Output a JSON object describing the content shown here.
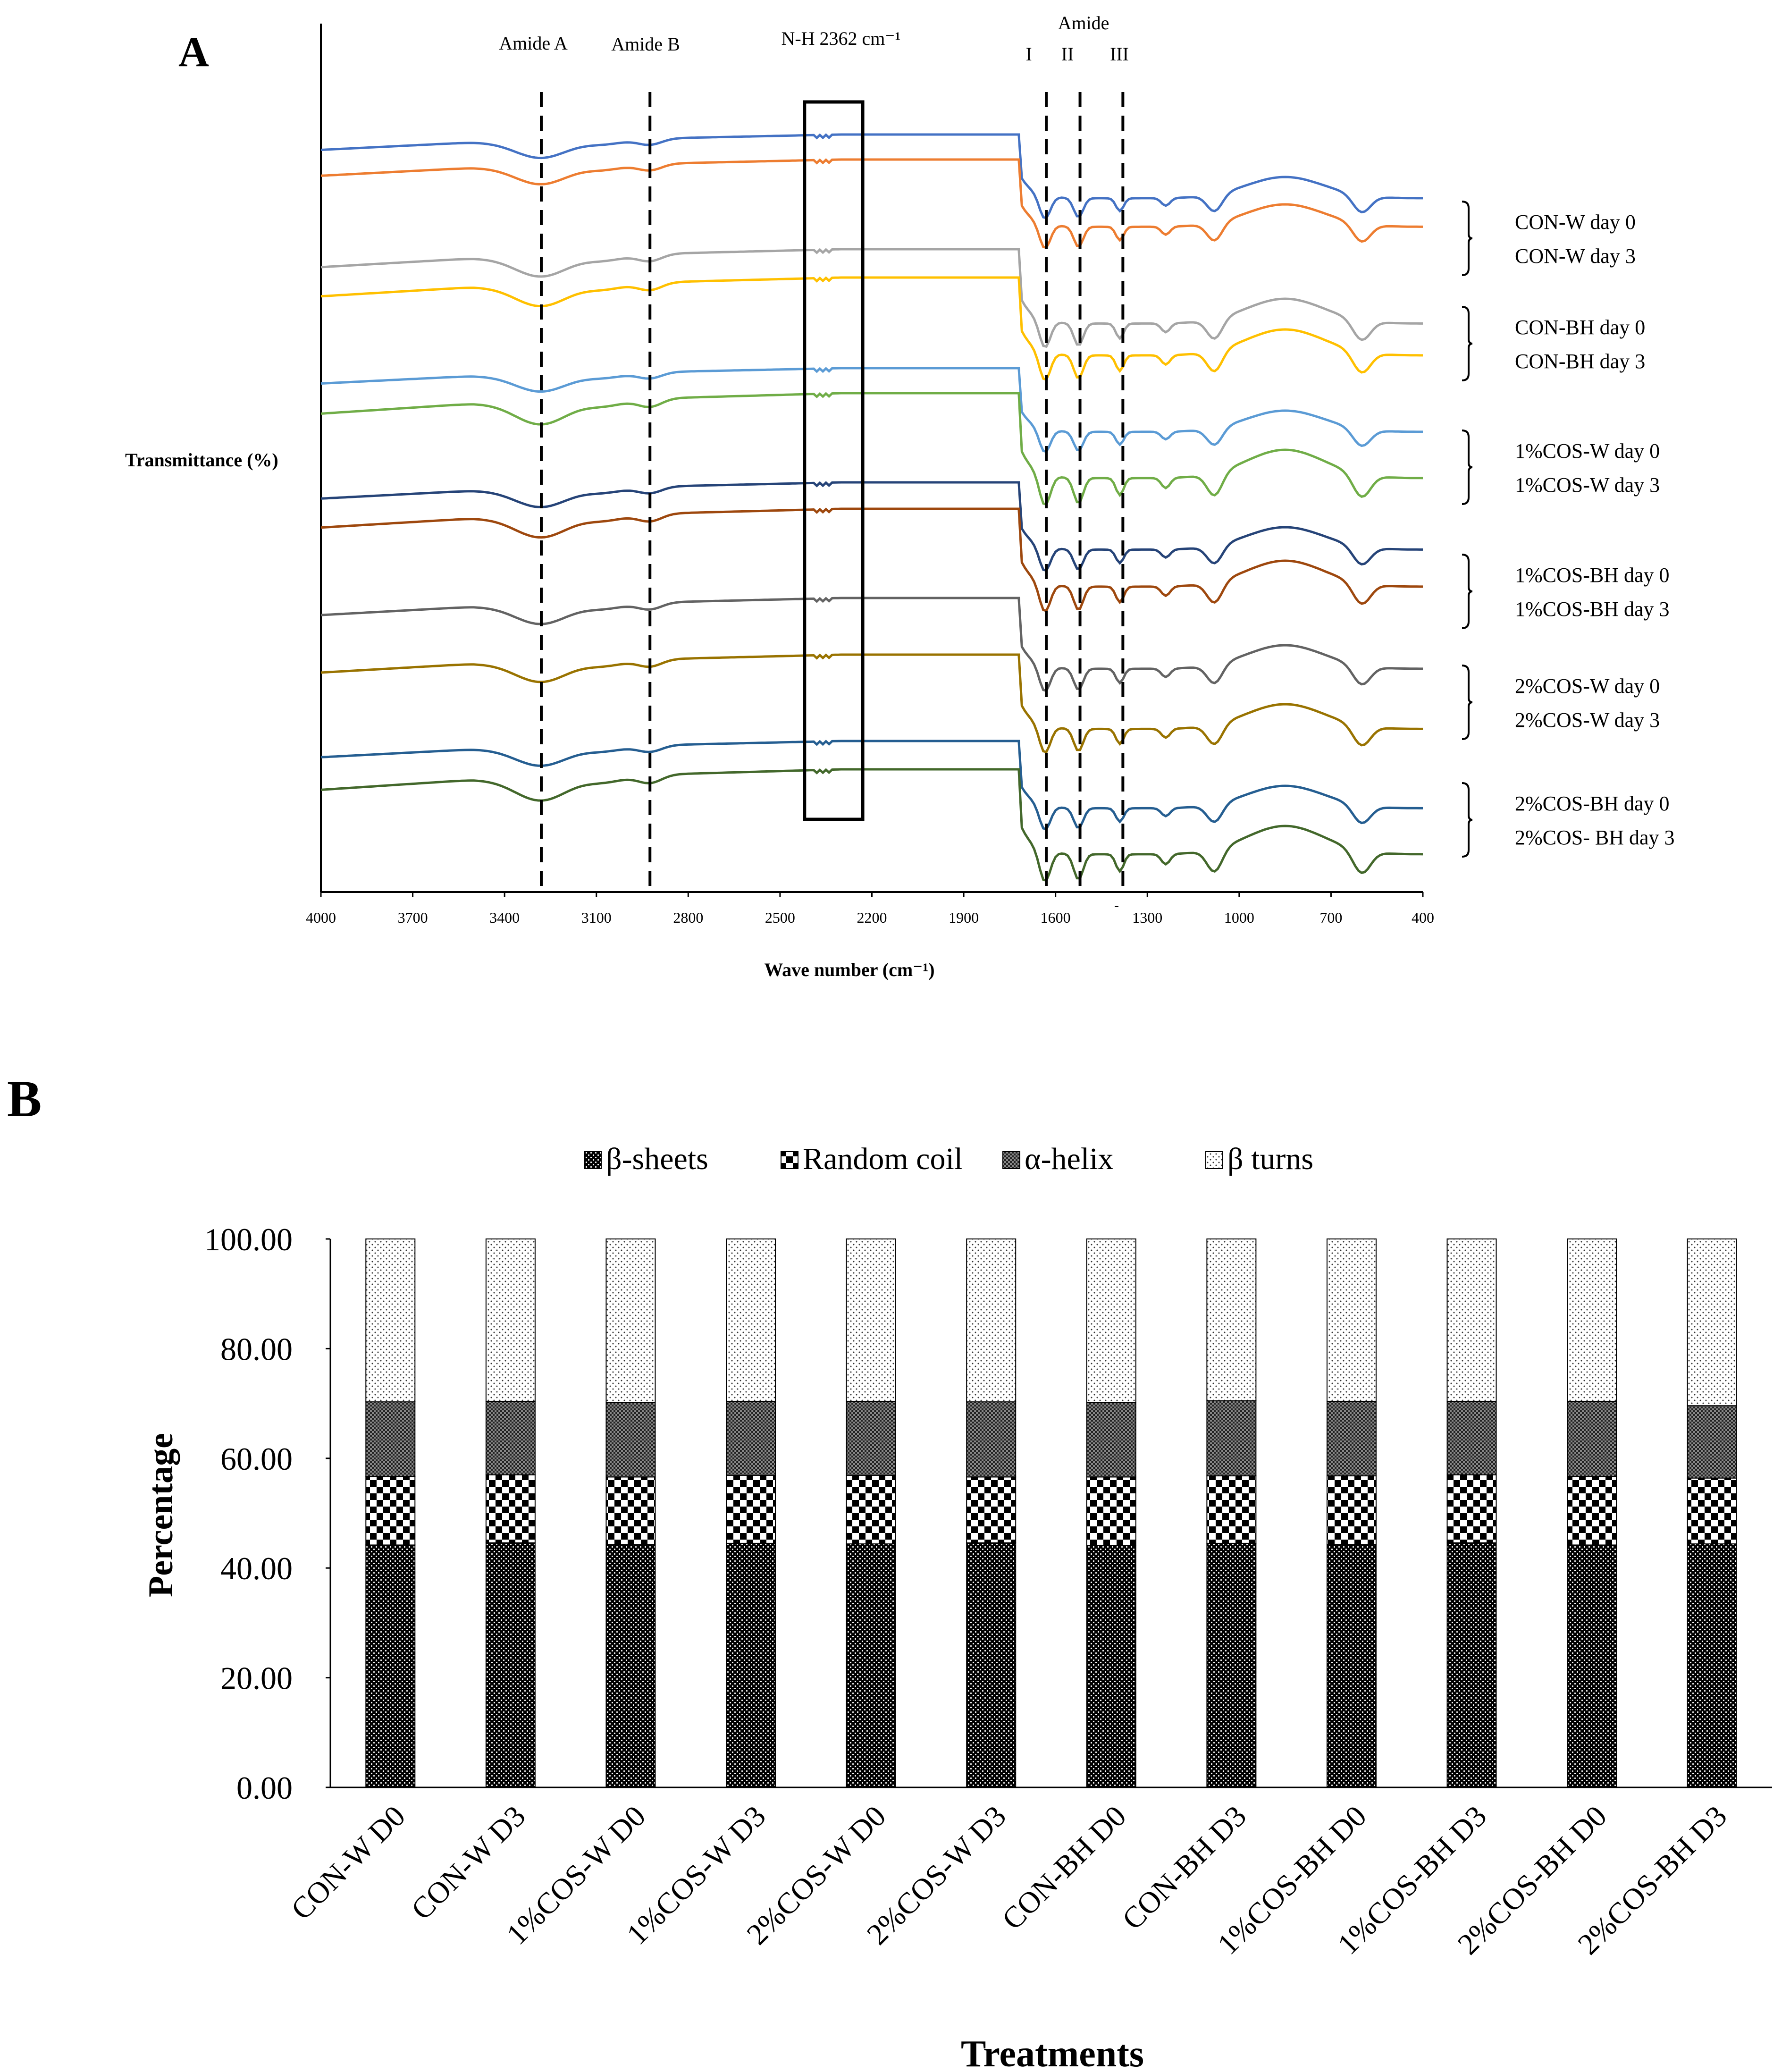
{
  "panel_a": {
    "label": "A",
    "annotations": {
      "amide_a": "Amide A",
      "amide_b": "Amide B",
      "nh_box": "N-H 2362 cm⁻¹",
      "amide": "Amide",
      "amide_i": "I",
      "amide_ii": "II",
      "amide_iii": "III",
      "stray_mark": "-"
    },
    "groups": [
      {
        "day0": "CON-W day 0",
        "day3": "CON-W day 3"
      },
      {
        "day0": "CON-BH day 0",
        "day3": "CON-BH day 3"
      },
      {
        "day0": "1%COS-W day 0",
        "day3": "1%COS-W day 3"
      },
      {
        "day0": "1%COS-BH day 0",
        "day3": "1%COS-BH day 3"
      },
      {
        "day0": "2%COS-W day 0",
        "day3": "2%COS-W day 3"
      },
      {
        "day0": "2%COS-BH day 0",
        "day3": "2%COS- BH day 3"
      }
    ]
  },
  "panel_b": {
    "label": "B"
  },
  "chart_data": [
    {
      "type": "line",
      "title": "",
      "xlabel": "Wave number (cm⁻¹)",
      "ylabel": "Transmittance (%)",
      "xlim": [
        4000,
        400
      ],
      "xticks": [
        "4000",
        "3700",
        "3400",
        "3100",
        "2800",
        "2500",
        "2200",
        "1900",
        "1600",
        "1300",
        "1000",
        "700",
        "400"
      ],
      "yticks": [],
      "dashed_markers": [
        3280,
        2925,
        1630,
        1520,
        1380
      ],
      "box_range": [
        2420,
        2230
      ],
      "series": [
        {
          "name": "CON-W day 0",
          "color": "#4472c4"
        },
        {
          "name": "CON-W day 3",
          "color": "#ed7d31"
        },
        {
          "name": "CON-BH day 0",
          "color": "#a5a5a5"
        },
        {
          "name": "CON-BH day 3",
          "color": "#ffc000"
        },
        {
          "name": "1%COS-W day 0",
          "color": "#5b9bd5"
        },
        {
          "name": "1%COS-W day 3",
          "color": "#70ad47"
        },
        {
          "name": "1%COS-BH day 0",
          "color": "#264478"
        },
        {
          "name": "1%COS-BH day 3",
          "color": "#9e480e"
        },
        {
          "name": "2%COS-W day 0",
          "color": "#636363"
        },
        {
          "name": "2%COS-W day 3",
          "color": "#997300"
        },
        {
          "name": "2%COS-BH day 0",
          "color": "#255e91"
        },
        {
          "name": "2%COS- BH day 3",
          "color": "#43682b"
        }
      ]
    },
    {
      "type": "bar",
      "stacked": true,
      "title": "",
      "xlabel": "Treatments",
      "ylabel": "Percentage",
      "ylim": [
        0,
        100
      ],
      "yticks": [
        "0.00",
        "20.00",
        "40.00",
        "60.00",
        "80.00",
        "100.00"
      ],
      "legend_position": "top",
      "categories": [
        "CON-W D0",
        "CON-W D3",
        "1%COS-W D0",
        "1%COS-W D3",
        "2%COS-W D0",
        "2%COS-W D3",
        "CON-BH D0",
        "CON-BH D3",
        "1%COS-BH D0",
        "1%COS-BH D3",
        "2%COS-BH D0",
        "2%COS-BH D3"
      ],
      "series": [
        {
          "name": "β-sheets",
          "pattern": "dense-dots",
          "values": [
            44.2,
            44.6,
            44.3,
            44.5,
            44.4,
            44.6,
            44.1,
            44.5,
            44.3,
            44.6,
            44.2,
            44.4
          ]
        },
        {
          "name": "Random coil",
          "pattern": "checker",
          "values": [
            12.5,
            12.4,
            12.3,
            12.4,
            12.5,
            12.0,
            12.5,
            12.3,
            12.5,
            12.4,
            12.5,
            12.0
          ]
        },
        {
          "name": "α-helix",
          "pattern": "fine-grid",
          "values": [
            13.6,
            13.4,
            13.6,
            13.5,
            13.5,
            13.7,
            13.6,
            13.7,
            13.6,
            13.4,
            13.7,
            13.2
          ]
        },
        {
          "name": "β turns",
          "pattern": "sparse-dots",
          "values": [
            29.7,
            29.6,
            29.8,
            29.6,
            29.6,
            29.7,
            29.8,
            29.5,
            29.6,
            29.6,
            29.6,
            30.4
          ]
        }
      ]
    }
  ]
}
